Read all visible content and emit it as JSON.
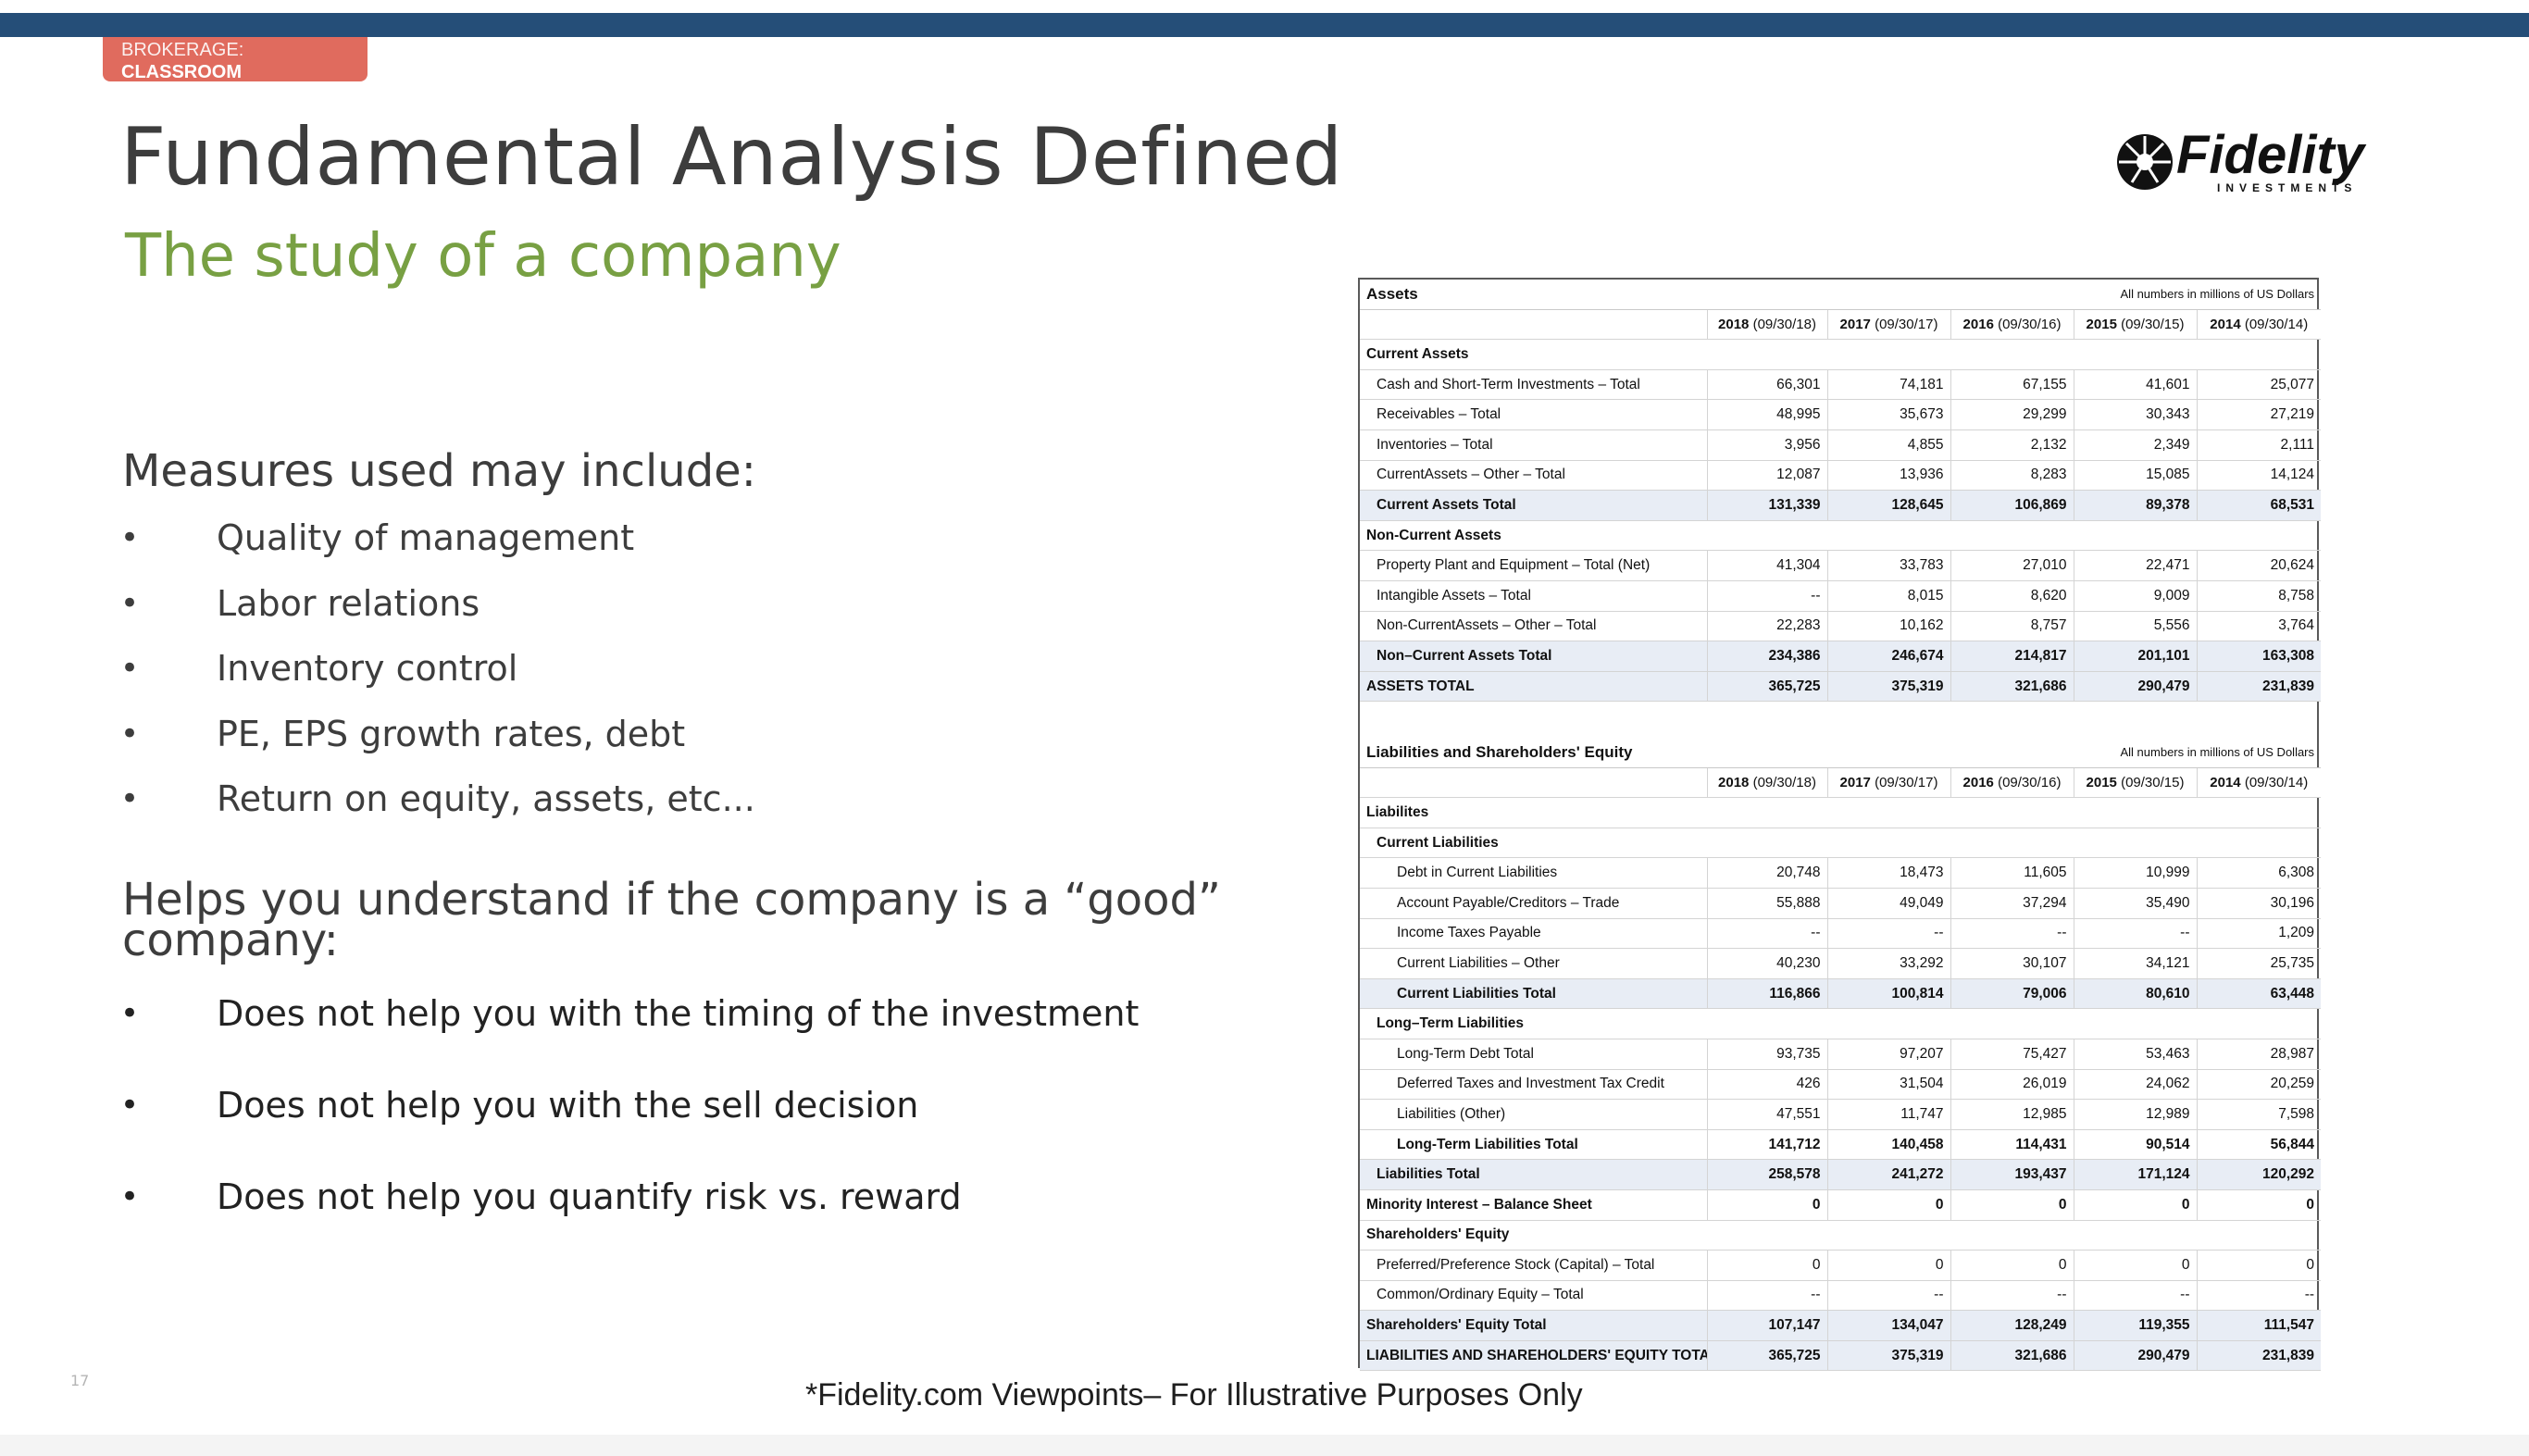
{
  "header": {
    "tag_line1": "BROKERAGE:",
    "tag_line2": "CLASSROOM",
    "title": "Fundamental Analysis Defined",
    "subtitle": "The study of a company",
    "logo_text": "Fidelity",
    "logo_subtext": "INVESTMENTS",
    "brand_colors": {
      "bar": "#254e78",
      "tag": "#e06b5e",
      "subtitle": "#78a043"
    }
  },
  "measures": {
    "heading": "Measures used may include:",
    "items": [
      "Quality of management",
      "Labor relations",
      "Inventory control",
      "PE, EPS growth rates, debt",
      "Return on equity, assets, etc..."
    ]
  },
  "helps": {
    "heading_line1": "Helps you understand if the company is a “good”",
    "heading_line2": "company:",
    "items": [
      "Does not help you with the timing of the investment",
      "Does not help you with the sell decision",
      "Does not help you quantify risk vs. reward"
    ]
  },
  "bullet_glyph": "•",
  "page_number": "17",
  "footnote": "*Fidelity.com Viewpoints– For Illustrative Purposes Only",
  "assets_table": {
    "title": "Assets",
    "note": "All numbers in millions of US Dollars",
    "years": [
      {
        "year": "2018",
        "date": "(09/30/18)"
      },
      {
        "year": "2017",
        "date": "(09/30/17)"
      },
      {
        "year": "2016",
        "date": "(09/30/16)"
      },
      {
        "year": "2015",
        "date": "(09/30/15)"
      },
      {
        "year": "2014",
        "date": "(09/30/14)"
      }
    ],
    "rows": [
      {
        "label": "Current Assets",
        "kind": "sec",
        "values": []
      },
      {
        "label": "Cash and Short-Term Investments – Total",
        "kind": "ind1",
        "values": [
          "66,301",
          "74,181",
          "67,155",
          "41,601",
          "25,077"
        ]
      },
      {
        "label": "Receivables – Total",
        "kind": "ind1",
        "values": [
          "48,995",
          "35,673",
          "29,299",
          "30,343",
          "27,219"
        ]
      },
      {
        "label": "Inventories – Total",
        "kind": "ind1",
        "values": [
          "3,956",
          "4,855",
          "2,132",
          "2,349",
          "2,111"
        ]
      },
      {
        "label": "CurrentAssets – Other – Total",
        "kind": "ind1",
        "values": [
          "12,087",
          "13,936",
          "8,283",
          "15,085",
          "14,124"
        ]
      },
      {
        "label": "Current Assets Total",
        "kind": "total1",
        "values": [
          "131,339",
          "128,645",
          "106,869",
          "89,378",
          "68,531"
        ]
      },
      {
        "label": "Non-Current Assets",
        "kind": "sec",
        "values": []
      },
      {
        "label": "Property Plant and Equipment – Total (Net)",
        "kind": "ind1",
        "values": [
          "41,304",
          "33,783",
          "27,010",
          "22,471",
          "20,624"
        ]
      },
      {
        "label": "Intangible Assets – Total",
        "kind": "ind1",
        "values": [
          "--",
          "8,015",
          "8,620",
          "9,009",
          "8,758"
        ]
      },
      {
        "label": "Non-CurrentAssets – Other – Total",
        "kind": "ind1",
        "values": [
          "22,283",
          "10,162",
          "8,757",
          "5,556",
          "3,764"
        ]
      },
      {
        "label": "Non–Current Assets Total",
        "kind": "total1",
        "values": [
          "234,386",
          "246,674",
          "214,817",
          "201,101",
          "163,308"
        ]
      },
      {
        "label": "ASSETS TOTAL",
        "kind": "grand",
        "values": [
          "365,725",
          "375,319",
          "321,686",
          "290,479",
          "231,839"
        ]
      }
    ]
  },
  "liabilities_table": {
    "title": "Liabilities and Shareholders' Equity",
    "note": "All numbers in millions of US Dollars",
    "years": [
      {
        "year": "2018",
        "date": "(09/30/18)"
      },
      {
        "year": "2017",
        "date": "(09/30/17)"
      },
      {
        "year": "2016",
        "date": "(09/30/16)"
      },
      {
        "year": "2015",
        "date": "(09/30/15)"
      },
      {
        "year": "2014",
        "date": "(09/30/14)"
      }
    ],
    "rows": [
      {
        "label": "Liabilites",
        "kind": "sec",
        "values": []
      },
      {
        "label": "Current Liabilities",
        "kind": "sec1",
        "values": []
      },
      {
        "label": "Debt in Current Liabilities",
        "kind": "ind2",
        "values": [
          "20,748",
          "18,473",
          "11,605",
          "10,999",
          "6,308"
        ]
      },
      {
        "label": "Account Payable/Creditors – Trade",
        "kind": "ind2",
        "values": [
          "55,888",
          "49,049",
          "37,294",
          "35,490",
          "30,196"
        ]
      },
      {
        "label": "Income Taxes Payable",
        "kind": "ind2",
        "values": [
          "--",
          "--",
          "--",
          "--",
          "1,209"
        ]
      },
      {
        "label": "Current Liabilities – Other",
        "kind": "ind2",
        "values": [
          "40,230",
          "33,292",
          "30,107",
          "34,121",
          "25,735"
        ]
      },
      {
        "label": "Current Liabilities Total",
        "kind": "total2",
        "values": [
          "116,866",
          "100,814",
          "79,006",
          "80,610",
          "63,448"
        ]
      },
      {
        "label": "Long–Term Liabilities",
        "kind": "sec1",
        "values": []
      },
      {
        "label": "Long-Term Debt Total",
        "kind": "ind2",
        "values": [
          "93,735",
          "97,207",
          "75,427",
          "53,463",
          "28,987"
        ]
      },
      {
        "label": "Deferred Taxes and Investment Tax Credit",
        "kind": "ind2",
        "values": [
          "426",
          "31,504",
          "26,019",
          "24,062",
          "20,259"
        ]
      },
      {
        "label": "Liabilities (Other)",
        "kind": "ind2",
        "values": [
          "47,551",
          "11,747",
          "12,985",
          "12,989",
          "7,598"
        ]
      },
      {
        "label": "Long-Term Liabilities Total",
        "kind": "boldind2",
        "values": [
          "141,712",
          "140,458",
          "114,431",
          "90,514",
          "56,844"
        ]
      },
      {
        "label": "Liabilities Total",
        "kind": "total1",
        "values": [
          "258,578",
          "241,272",
          "193,437",
          "171,124",
          "120,292"
        ]
      },
      {
        "label": "Minority Interest – Balance Sheet",
        "kind": "boldrow",
        "values": [
          "0",
          "0",
          "0",
          "0",
          "0"
        ]
      },
      {
        "label": "Shareholders' Equity",
        "kind": "sec",
        "values": []
      },
      {
        "label": "Preferred/Preference Stock (Capital) – Total",
        "kind": "ind1",
        "values": [
          "0",
          "0",
          "0",
          "0",
          "0"
        ]
      },
      {
        "label": "Common/Ordinary Equity – Total",
        "kind": "ind1",
        "values": [
          "--",
          "--",
          "--",
          "--",
          "--"
        ]
      },
      {
        "label": "Shareholders' Equity Total",
        "kind": "grand",
        "values": [
          "107,147",
          "134,047",
          "128,249",
          "119,355",
          "111,547"
        ]
      },
      {
        "label": "LIABILITIES AND SHAREHOLDERS' EQUITY TOTAL",
        "kind": "grand",
        "values": [
          "365,725",
          "375,319",
          "321,686",
          "290,479",
          "231,839"
        ]
      }
    ]
  }
}
